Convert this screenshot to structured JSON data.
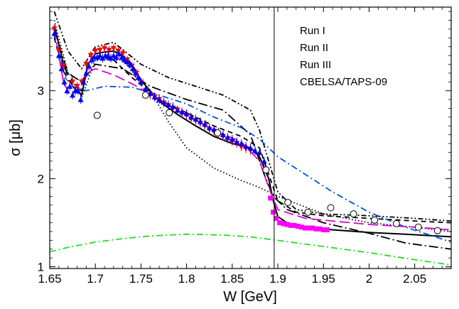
{
  "chart_data": {
    "type": "scatter",
    "title": "",
    "xlabel": "W [GeV]",
    "ylabel": "σ [μb]",
    "xlim": [
      1.65,
      2.09
    ],
    "ylim": [
      0.98,
      3.95
    ],
    "x_ticks": [
      1.65,
      1.7,
      1.75,
      1.8,
      1.85,
      1.9,
      1.95,
      2.0,
      2.05
    ],
    "x_tick_labels": [
      "1.65",
      "1.7",
      "1.75",
      "1.8",
      "1.85",
      "1.9",
      "1.95",
      "2",
      "2.05"
    ],
    "y_ticks": [
      1,
      2,
      3
    ],
    "y_tick_labels": [
      "1",
      "2",
      "3"
    ],
    "vertical_line_x": 1.896,
    "grid": false,
    "legend_position": "top-right",
    "series": [
      {
        "name": "Run I",
        "marker": "triangle-down",
        "color": "#ff0000",
        "x": [
          1.655,
          1.66,
          1.665,
          1.67,
          1.675,
          1.68,
          1.685,
          1.69,
          1.695,
          1.7,
          1.705,
          1.71,
          1.715,
          1.72,
          1.725,
          1.73,
          1.735,
          1.74,
          1.745,
          1.75,
          1.755,
          1.76,
          1.765,
          1.77,
          1.775,
          1.78,
          1.785,
          1.79,
          1.795,
          1.8,
          1.805,
          1.81,
          1.815,
          1.82,
          1.825,
          1.83,
          1.835,
          1.84,
          1.845,
          1.85,
          1.855,
          1.86,
          1.865,
          1.87
        ],
        "y": [
          3.7,
          3.45,
          3.28,
          3.15,
          3.1,
          3.05,
          3.1,
          3.3,
          3.4,
          3.45,
          3.46,
          3.48,
          3.46,
          3.48,
          3.45,
          3.42,
          3.35,
          3.28,
          3.2,
          3.1,
          3.0,
          2.95,
          2.93,
          2.9,
          2.86,
          2.83,
          2.8,
          2.78,
          2.74,
          2.72,
          2.68,
          2.66,
          2.63,
          2.6,
          2.56,
          2.54,
          2.51,
          2.48,
          2.45,
          2.42,
          2.4,
          2.36,
          2.34,
          2.32
        ]
      },
      {
        "name": "Run II",
        "marker": "triangle-up",
        "color": "#0000ff",
        "x": [
          1.655,
          1.66,
          1.663,
          1.666,
          1.669,
          1.672,
          1.675,
          1.678,
          1.681,
          1.684,
          1.687,
          1.69,
          1.693,
          1.696,
          1.699,
          1.702,
          1.705,
          1.708,
          1.711,
          1.714,
          1.717,
          1.72,
          1.723,
          1.726,
          1.729,
          1.732,
          1.735,
          1.738,
          1.741,
          1.744,
          1.747,
          1.75,
          1.755,
          1.76,
          1.765,
          1.77,
          1.775,
          1.78,
          1.785,
          1.79,
          1.795,
          1.8,
          1.805,
          1.81,
          1.815,
          1.82,
          1.825,
          1.83,
          1.835,
          1.84,
          1.845,
          1.85,
          1.855,
          1.86,
          1.865,
          1.87,
          1.875,
          1.88,
          1.885
        ],
        "y": [
          3.65,
          3.4,
          3.25,
          3.1,
          3.0,
          3.05,
          2.95,
          3.0,
          3.0,
          2.9,
          3.1,
          3.2,
          3.28,
          3.35,
          3.38,
          3.38,
          3.4,
          3.37,
          3.4,
          3.4,
          3.37,
          3.4,
          3.38,
          3.42,
          3.38,
          3.35,
          3.33,
          3.3,
          3.25,
          3.2,
          3.15,
          3.1,
          3.02,
          2.97,
          2.93,
          2.9,
          2.87,
          2.84,
          2.82,
          2.78,
          2.76,
          2.74,
          2.7,
          2.68,
          2.65,
          2.62,
          2.58,
          2.56,
          2.53,
          2.5,
          2.47,
          2.45,
          2.42,
          2.4,
          2.37,
          2.35,
          2.32,
          2.3,
          2.2
        ]
      },
      {
        "name": "Run III",
        "marker": "square",
        "color": "#ff00ff",
        "x": [
          1.892,
          1.895,
          1.898,
          1.902,
          1.906,
          1.91,
          1.914,
          1.918,
          1.922,
          1.926,
          1.93,
          1.934,
          1.938,
          1.942,
          1.946,
          1.95,
          1.954
        ],
        "y": [
          1.78,
          1.62,
          1.55,
          1.5,
          1.49,
          1.48,
          1.47,
          1.47,
          1.46,
          1.45,
          1.44,
          1.44,
          1.44,
          1.43,
          1.43,
          1.42,
          1.42
        ]
      },
      {
        "name": "CBELSA/TAPS-09",
        "marker": "circle-open",
        "color": "#000000",
        "x": [
          1.671,
          1.702,
          1.755,
          1.781,
          1.834,
          1.887,
          1.911,
          1.933,
          1.958,
          1.983,
          2.006,
          2.03,
          2.054,
          2.075
        ],
        "y": [
          3.15,
          2.72,
          2.95,
          2.75,
          2.52,
          2.1,
          1.73,
          1.62,
          1.67,
          1.6,
          1.53,
          1.49,
          1.45,
          1.41
        ]
      }
    ],
    "curves": [
      {
        "style": "solid",
        "color": "#000000",
        "x": [
          1.655,
          1.665,
          1.675,
          1.685,
          1.692,
          1.7,
          1.71,
          1.72,
          1.73,
          1.74,
          1.75,
          1.77,
          1.79,
          1.81,
          1.83,
          1.85,
          1.87,
          1.88,
          1.89,
          1.895,
          1.9,
          1.91,
          1.93,
          1.96,
          2.0,
          2.04,
          2.09
        ],
        "y": [
          3.75,
          3.3,
          3.05,
          2.95,
          3.3,
          3.42,
          3.44,
          3.45,
          3.4,
          3.3,
          3.12,
          2.88,
          2.73,
          2.6,
          2.48,
          2.4,
          2.35,
          2.25,
          2.0,
          1.75,
          1.57,
          1.5,
          1.45,
          1.42,
          1.39,
          1.37,
          1.34
        ]
      },
      {
        "style": "dash",
        "color": "#000000",
        "x": [
          1.655,
          1.665,
          1.675,
          1.685,
          1.69,
          1.7,
          1.72,
          1.74,
          1.77,
          1.8,
          1.83,
          1.86,
          1.88,
          1.89,
          1.9,
          1.92,
          1.95,
          2.0,
          2.05,
          2.09
        ],
        "y": [
          3.6,
          3.22,
          3.05,
          3.0,
          3.25,
          3.4,
          3.35,
          3.15,
          2.9,
          2.75,
          2.6,
          2.48,
          2.35,
          2.05,
          1.75,
          1.62,
          1.58,
          1.55,
          1.52,
          1.5
        ]
      },
      {
        "style": "dash-dot-dot",
        "color": "#000000",
        "x": [
          1.655,
          1.67,
          1.685,
          1.7,
          1.72,
          1.75,
          1.78,
          1.81,
          1.84,
          1.87,
          1.88,
          1.89,
          1.9,
          1.92,
          1.95,
          2.0,
          2.05,
          2.09
        ],
        "y": [
          3.9,
          3.45,
          3.25,
          3.5,
          3.55,
          3.3,
          3.15,
          3.05,
          2.95,
          2.78,
          2.55,
          2.2,
          1.85,
          1.65,
          1.6,
          1.58,
          1.55,
          1.52
        ]
      },
      {
        "style": "long-dash-dot",
        "color": "#000000",
        "x": [
          1.655,
          1.67,
          1.685,
          1.7,
          1.73,
          1.76,
          1.8,
          1.84,
          1.87,
          1.885,
          1.895,
          1.91,
          1.95,
          2.0,
          2.04,
          2.09
        ],
        "y": [
          3.7,
          3.2,
          3.1,
          3.3,
          3.25,
          3.05,
          2.9,
          2.78,
          2.5,
          2.05,
          1.8,
          1.65,
          1.5,
          1.38,
          1.27,
          1.2
        ]
      },
      {
        "style": "dotted",
        "color": "#000000",
        "x": [
          1.655,
          1.67,
          1.685,
          1.7,
          1.73,
          1.76,
          1.78,
          1.8,
          1.83,
          1.86,
          1.88,
          1.9,
          1.95,
          2.0,
          2.05,
          2.09
        ],
        "y": [
          3.8,
          3.2,
          2.92,
          3.35,
          3.35,
          3.0,
          2.65,
          2.35,
          2.12,
          1.98,
          1.9,
          1.8,
          1.6,
          1.5,
          1.45,
          1.4
        ]
      },
      {
        "style": "dash-dot",
        "color": "#0055dd",
        "x": [
          1.655,
          1.665,
          1.675,
          1.69,
          1.71,
          1.74,
          1.77,
          1.8,
          1.83,
          1.86,
          1.88,
          1.9,
          1.93,
          1.96,
          2.0,
          2.04,
          2.09
        ],
        "y": [
          3.65,
          3.25,
          3.05,
          3.0,
          3.05,
          3.04,
          2.95,
          2.85,
          2.7,
          2.58,
          2.45,
          2.25,
          2.05,
          1.85,
          1.62,
          1.45,
          1.28
        ]
      },
      {
        "style": "long-dash",
        "color": "#dd00dd",
        "x": [
          1.655,
          1.665,
          1.672,
          1.68,
          1.69,
          1.7,
          1.72,
          1.74,
          1.77,
          1.8,
          1.83,
          1.86,
          1.88,
          1.89,
          1.9,
          1.93,
          1.96,
          2.0,
          2.05,
          2.09
        ],
        "y": [
          3.7,
          3.1,
          2.95,
          3.0,
          3.2,
          3.25,
          3.18,
          3.08,
          2.9,
          2.72,
          2.55,
          2.42,
          2.2,
          1.9,
          1.65,
          1.55,
          1.52,
          1.48,
          1.45,
          1.42
        ]
      },
      {
        "style": "dash-dot",
        "color": "#22dd22",
        "x": [
          1.65,
          1.67,
          1.7,
          1.73,
          1.76,
          1.8,
          1.84,
          1.87,
          1.9,
          1.95,
          2.0,
          2.05,
          2.09
        ],
        "y": [
          1.17,
          1.22,
          1.28,
          1.32,
          1.35,
          1.37,
          1.36,
          1.34,
          1.3,
          1.23,
          1.16,
          1.08,
          1.02
        ]
      }
    ]
  }
}
